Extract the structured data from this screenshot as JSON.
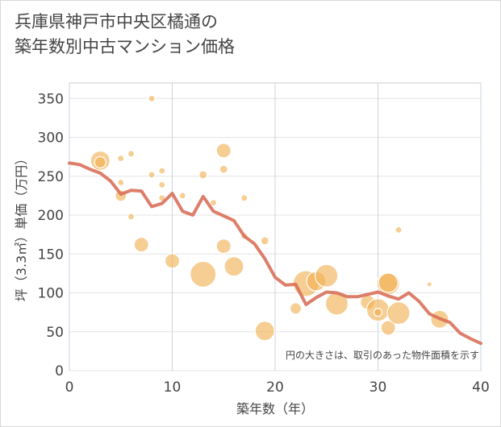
{
  "title_line1": "兵庫県神戸市中央区橘通の",
  "title_line2": "築年数別中古マンション価格",
  "chart_data": {
    "type": "scatter",
    "title": "兵庫県神戸市中央区橘通の築年数別中古マンション価格",
    "xlabel": "築年数（年）",
    "ylabel": "坪（3.3㎡）単価（万円）",
    "xlim": [
      0,
      40
    ],
    "ylim": [
      0,
      370
    ],
    "xticks": [
      0,
      10,
      20,
      30,
      40
    ],
    "yticks": [
      0,
      50,
      100,
      150,
      200,
      250,
      300,
      350
    ],
    "grid": true,
    "note": "円の大きさは、取引のあった物件面積を示す",
    "colors": {
      "bubble": "#f0b050",
      "line": "#d9705a"
    },
    "scatter_points": [
      {
        "x": 3,
        "y": 270,
        "size": 12
      },
      {
        "x": 3,
        "y": 268,
        "size": 7
      },
      {
        "x": 5,
        "y": 273,
        "size": 4
      },
      {
        "x": 6,
        "y": 279,
        "size": 4
      },
      {
        "x": 5,
        "y": 242,
        "size": 4
      },
      {
        "x": 5,
        "y": 225,
        "size": 7
      },
      {
        "x": 6,
        "y": 198,
        "size": 4
      },
      {
        "x": 7,
        "y": 162,
        "size": 9
      },
      {
        "x": 8,
        "y": 350,
        "size": 4
      },
      {
        "x": 8,
        "y": 252,
        "size": 4
      },
      {
        "x": 9,
        "y": 257,
        "size": 4
      },
      {
        "x": 9,
        "y": 239,
        "size": 4
      },
      {
        "x": 9,
        "y": 222,
        "size": 4
      },
      {
        "x": 10,
        "y": 141,
        "size": 9
      },
      {
        "x": 11,
        "y": 225,
        "size": 4
      },
      {
        "x": 13,
        "y": 252,
        "size": 5
      },
      {
        "x": 13,
        "y": 124,
        "size": 16
      },
      {
        "x": 14,
        "y": 216,
        "size": 4
      },
      {
        "x": 15,
        "y": 283,
        "size": 9
      },
      {
        "x": 15,
        "y": 259,
        "size": 5
      },
      {
        "x": 15,
        "y": 160,
        "size": 9
      },
      {
        "x": 16,
        "y": 134,
        "size": 12
      },
      {
        "x": 17,
        "y": 222,
        "size": 4
      },
      {
        "x": 17,
        "y": 173,
        "size": 4
      },
      {
        "x": 19,
        "y": 167,
        "size": 5
      },
      {
        "x": 19,
        "y": 51,
        "size": 12
      },
      {
        "x": 22,
        "y": 80,
        "size": 7
      },
      {
        "x": 23,
        "y": 112,
        "size": 16
      },
      {
        "x": 24,
        "y": 115,
        "size": 12
      },
      {
        "x": 25,
        "y": 122,
        "size": 14
      },
      {
        "x": 26,
        "y": 86,
        "size": 14
      },
      {
        "x": 29,
        "y": 88,
        "size": 9
      },
      {
        "x": 30,
        "y": 78,
        "size": 14
      },
      {
        "x": 30,
        "y": 75,
        "size": 5
      },
      {
        "x": 31,
        "y": 112,
        "size": 14
      },
      {
        "x": 31,
        "y": 113,
        "size": 12
      },
      {
        "x": 31,
        "y": 55,
        "size": 9
      },
      {
        "x": 32,
        "y": 181,
        "size": 4
      },
      {
        "x": 32,
        "y": 74,
        "size": 14
      },
      {
        "x": 35,
        "y": 111,
        "size": 3
      },
      {
        "x": 36,
        "y": 66,
        "size": 11
      }
    ],
    "series": [
      {
        "x": [
          0,
          1,
          2,
          3,
          4,
          5,
          6,
          7,
          8,
          9,
          10,
          11,
          12,
          13,
          14,
          15,
          16,
          17,
          18,
          19,
          20,
          21,
          22,
          23,
          24,
          25,
          26,
          27,
          28,
          29,
          30,
          31,
          32,
          33,
          34,
          35,
          36,
          37,
          38,
          39,
          40
        ],
        "values": [
          267,
          265,
          259,
          254,
          244,
          227,
          232,
          231,
          211,
          215,
          228,
          205,
          200,
          224,
          205,
          199,
          193,
          173,
          163,
          144,
          120,
          110,
          111,
          85,
          94,
          101,
          100,
          95,
          95,
          98,
          101,
          96,
          92,
          100,
          89,
          73,
          67,
          62,
          48,
          41,
          35
        ]
      }
    ]
  }
}
